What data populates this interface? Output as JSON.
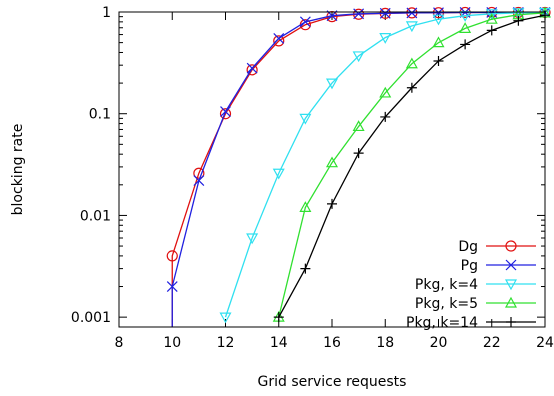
{
  "chart_data": {
    "type": "line",
    "title": "",
    "xlabel": "Grid service requests",
    "ylabel": "blocking rate",
    "xlim": [
      8,
      24
    ],
    "ylim": [
      0.0008,
      1
    ],
    "yscale": "log",
    "grid": false,
    "legend": "bottom-right",
    "x_ticks": [
      {
        "value": 8,
        "label": "8"
      },
      {
        "value": 10,
        "label": "10"
      },
      {
        "value": 12,
        "label": "12"
      },
      {
        "value": 14,
        "label": "14"
      },
      {
        "value": 16,
        "label": "16"
      },
      {
        "value": 18,
        "label": "18"
      },
      {
        "value": 20,
        "label": "20"
      },
      {
        "value": 22,
        "label": "22"
      },
      {
        "value": 24,
        "label": "24"
      }
    ],
    "y_ticks": [
      {
        "value": 0.001,
        "label": "0.001"
      },
      {
        "value": 0.01,
        "label": "0.01"
      },
      {
        "value": 0.1,
        "label": "0.1"
      },
      {
        "value": 1,
        "label": "1"
      }
    ],
    "series": [
      {
        "name": "Dg",
        "color": "#e01010",
        "marker": "circle",
        "x": [
          10,
          11,
          12,
          13,
          14,
          15,
          16,
          17,
          18,
          19,
          20,
          21,
          22,
          23,
          24
        ],
        "y": [
          0.004,
          0.026,
          0.1,
          0.27,
          0.52,
          0.75,
          0.9,
          0.95,
          0.97,
          0.98,
          0.985,
          0.99,
          0.99,
          0.99,
          0.99
        ]
      },
      {
        "name": "Pg",
        "color": "#2020e0",
        "marker": "x",
        "x": [
          10,
          11,
          12,
          13,
          14,
          15,
          16,
          17,
          18,
          19,
          20,
          21,
          22,
          23,
          24
        ],
        "y": [
          0.002,
          0.022,
          0.105,
          0.28,
          0.55,
          0.8,
          0.92,
          0.96,
          0.97,
          0.98,
          0.985,
          0.99,
          0.99,
          0.99,
          0.99
        ]
      },
      {
        "name": "Pkg, k=4",
        "color": "#30e0f0",
        "marker": "triangle-down",
        "x": [
          12,
          13,
          14,
          15,
          16,
          17,
          18,
          19,
          20,
          21,
          22,
          23,
          24
        ],
        "y": [
          0.001,
          0.006,
          0.026,
          0.09,
          0.2,
          0.37,
          0.56,
          0.73,
          0.85,
          0.92,
          0.96,
          0.98,
          0.99
        ]
      },
      {
        "name": "Pkg, k=5",
        "color": "#30e030",
        "marker": "triangle-up",
        "x": [
          14,
          15,
          16,
          17,
          18,
          19,
          20,
          21,
          22,
          23,
          24
        ],
        "y": [
          0.001,
          0.012,
          0.033,
          0.075,
          0.16,
          0.31,
          0.5,
          0.69,
          0.85,
          0.94,
          0.98
        ]
      },
      {
        "name": "Pkg, k=14",
        "color": "#000000",
        "marker": "plus",
        "x": [
          14,
          15,
          16,
          17,
          18,
          19,
          20,
          21,
          22,
          23,
          24
        ],
        "y": [
          0.001,
          0.003,
          0.013,
          0.041,
          0.093,
          0.18,
          0.33,
          0.48,
          0.66,
          0.82,
          0.93
        ]
      }
    ]
  }
}
